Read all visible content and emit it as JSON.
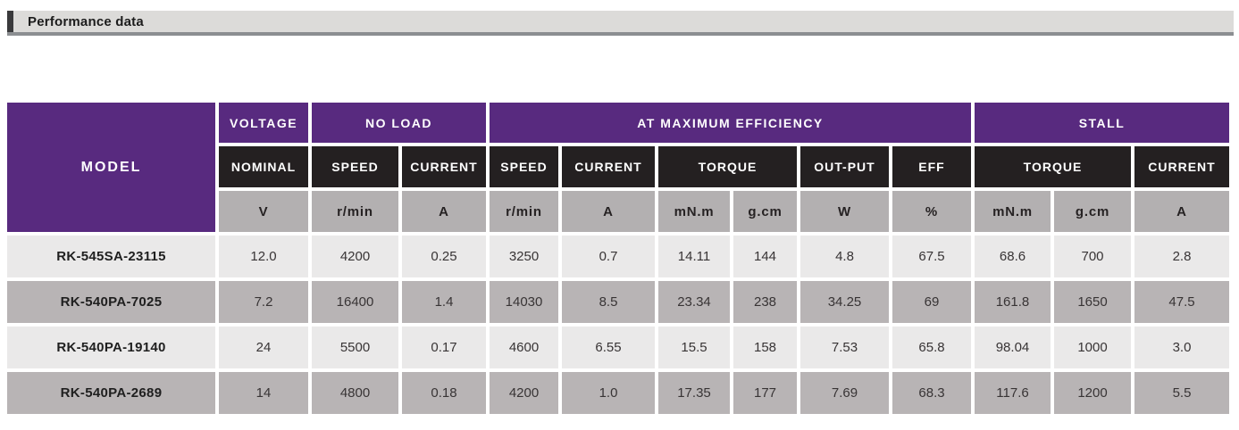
{
  "page": {
    "title": "Performance data"
  },
  "colors": {
    "purple": "#582a7f",
    "black": "#242021",
    "unit_gray": "#b3b0b1",
    "row_light": "#eae9e9",
    "row_dark": "#b8b4b5",
    "titlebar_bg": "#dcdbd9",
    "titlebar_underline": "#8b8e91"
  },
  "table": {
    "model_header": "MODEL",
    "groups": {
      "voltage": "VOLTAGE",
      "no_load": "NO LOAD",
      "at_max_eff": "AT MAXIMUM EFFICIENCY",
      "stall": "STALL"
    },
    "subheaders": [
      "NOMINAL",
      "SPEED",
      "CURRENT",
      "SPEED",
      "CURRENT",
      "TORQUE",
      "OUT-PUT",
      "EFF",
      "TORQUE",
      "CURRENT"
    ],
    "units": [
      "V",
      "r/min",
      "A",
      "r/min",
      "A",
      "mN.m",
      "g.cm",
      "W",
      "%",
      "mN.m",
      "g.cm",
      "A"
    ],
    "rows": [
      {
        "model": "RK-545SA-23115",
        "values": [
          "12.0",
          "4200",
          "0.25",
          "3250",
          "0.7",
          "14.11",
          "144",
          "4.8",
          "67.5",
          "68.6",
          "700",
          "2.8"
        ]
      },
      {
        "model": "RK-540PA-7025",
        "values": [
          "7.2",
          "16400",
          "1.4",
          "14030",
          "8.5",
          "23.34",
          "238",
          "34.25",
          "69",
          "161.8",
          "1650",
          "47.5"
        ]
      },
      {
        "model": "RK-540PA-19140",
        "values": [
          "24",
          "5500",
          "0.17",
          "4600",
          "6.55",
          "15.5",
          "158",
          "7.53",
          "65.8",
          "98.04",
          "1000",
          "3.0"
        ]
      },
      {
        "model": "RK-540PA-2689",
        "values": [
          "14",
          "4800",
          "0.18",
          "4200",
          "1.0",
          "17.35",
          "177",
          "7.69",
          "68.3",
          "117.6",
          "1200",
          "5.5"
        ]
      }
    ]
  }
}
